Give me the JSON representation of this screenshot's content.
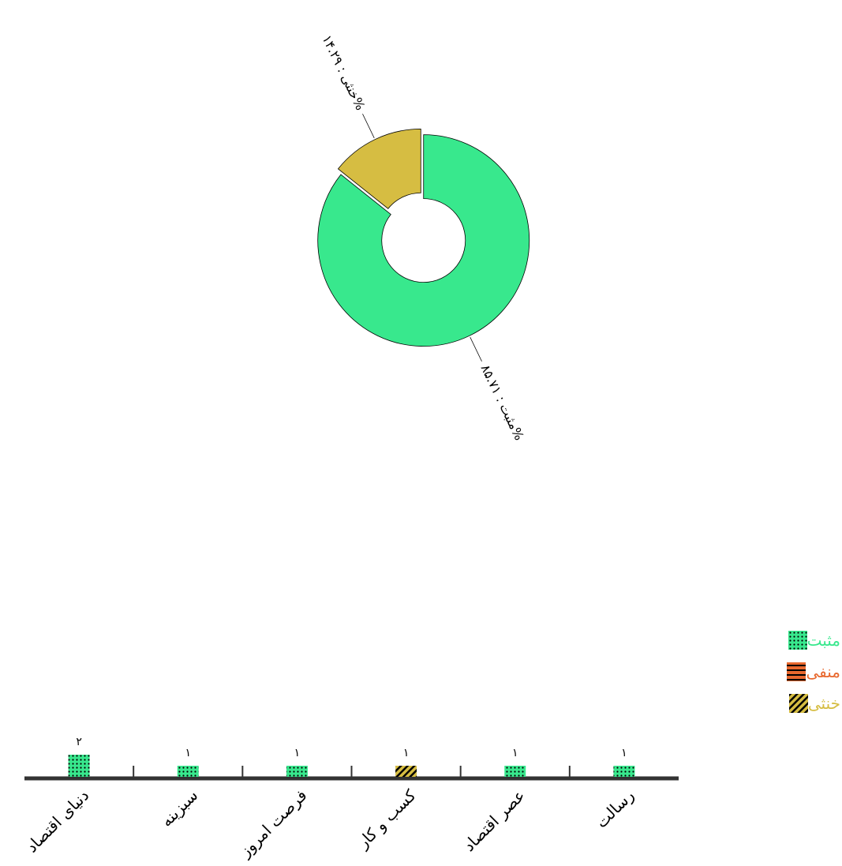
{
  "chart_data": [
    {
      "type": "pie",
      "slices": [
        {
          "label": "مثبت",
          "value": 85.71,
          "display": "مثبت : ۸۵.۷۱%",
          "color": "#38e88d"
        },
        {
          "label": "خنثی",
          "value": 14.29,
          "display": "خنثی : ۱۴.۲۹%",
          "color": "#d6bd42"
        }
      ]
    },
    {
      "type": "bar",
      "categories": [
        "دنیای اقتصاد",
        "سبزینه",
        "فرصت امروز",
        "کسب و کار",
        "عصر اقتصاد",
        "رسالت"
      ],
      "series": [
        {
          "name": "مثبت",
          "color": "#38e88d",
          "values": [
            2,
            1,
            1,
            0,
            1,
            1
          ]
        },
        {
          "name": "منفی",
          "color": "#e8682e",
          "values": [
            0,
            0,
            0,
            0,
            0,
            0
          ]
        },
        {
          "name": "خنثی",
          "color": "#d6bd42",
          "values": [
            0,
            0,
            0,
            1,
            0,
            0
          ]
        }
      ],
      "value_labels": [
        "۲",
        "۱",
        "۱",
        "۱",
        "۱",
        "۱"
      ],
      "legend": {
        "position": "right"
      }
    }
  ]
}
